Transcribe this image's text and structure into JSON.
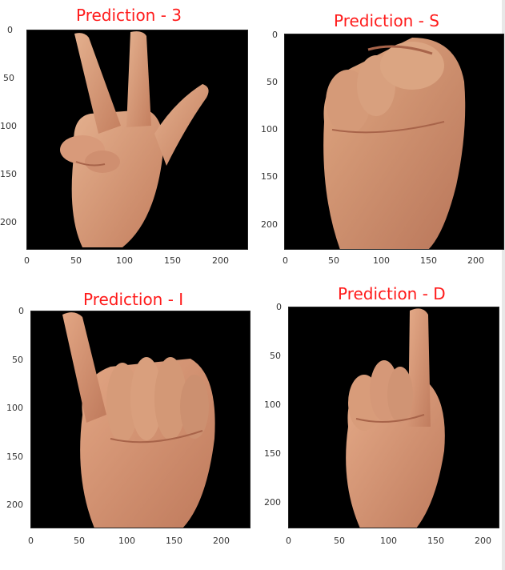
{
  "panels": [
    {
      "title": "Prediction - 3",
      "gesture": "three",
      "yticks": [
        "0",
        "50",
        "100",
        "150",
        "200"
      ],
      "xticks": [
        "0",
        "50",
        "100",
        "150",
        "200"
      ]
    },
    {
      "title": "Prediction - S",
      "gesture": "fist",
      "yticks": [
        "0",
        "50",
        "100",
        "150",
        "200"
      ],
      "xticks": [
        "0",
        "50",
        "100",
        "150",
        "200"
      ]
    },
    {
      "title": "Prediction - I",
      "gesture": "pinky",
      "yticks": [
        "0",
        "50",
        "100",
        "150",
        "200"
      ],
      "xticks": [
        "0",
        "50",
        "100",
        "150",
        "200"
      ]
    },
    {
      "title": "Prediction - D",
      "gesture": "index",
      "yticks": [
        "0",
        "50",
        "100",
        "150",
        "200"
      ],
      "xticks": [
        "0",
        "50",
        "100",
        "150",
        "200"
      ]
    }
  ],
  "colors": {
    "title": "#ff1a1a",
    "background": "#000000",
    "skin": "#d79a78"
  }
}
